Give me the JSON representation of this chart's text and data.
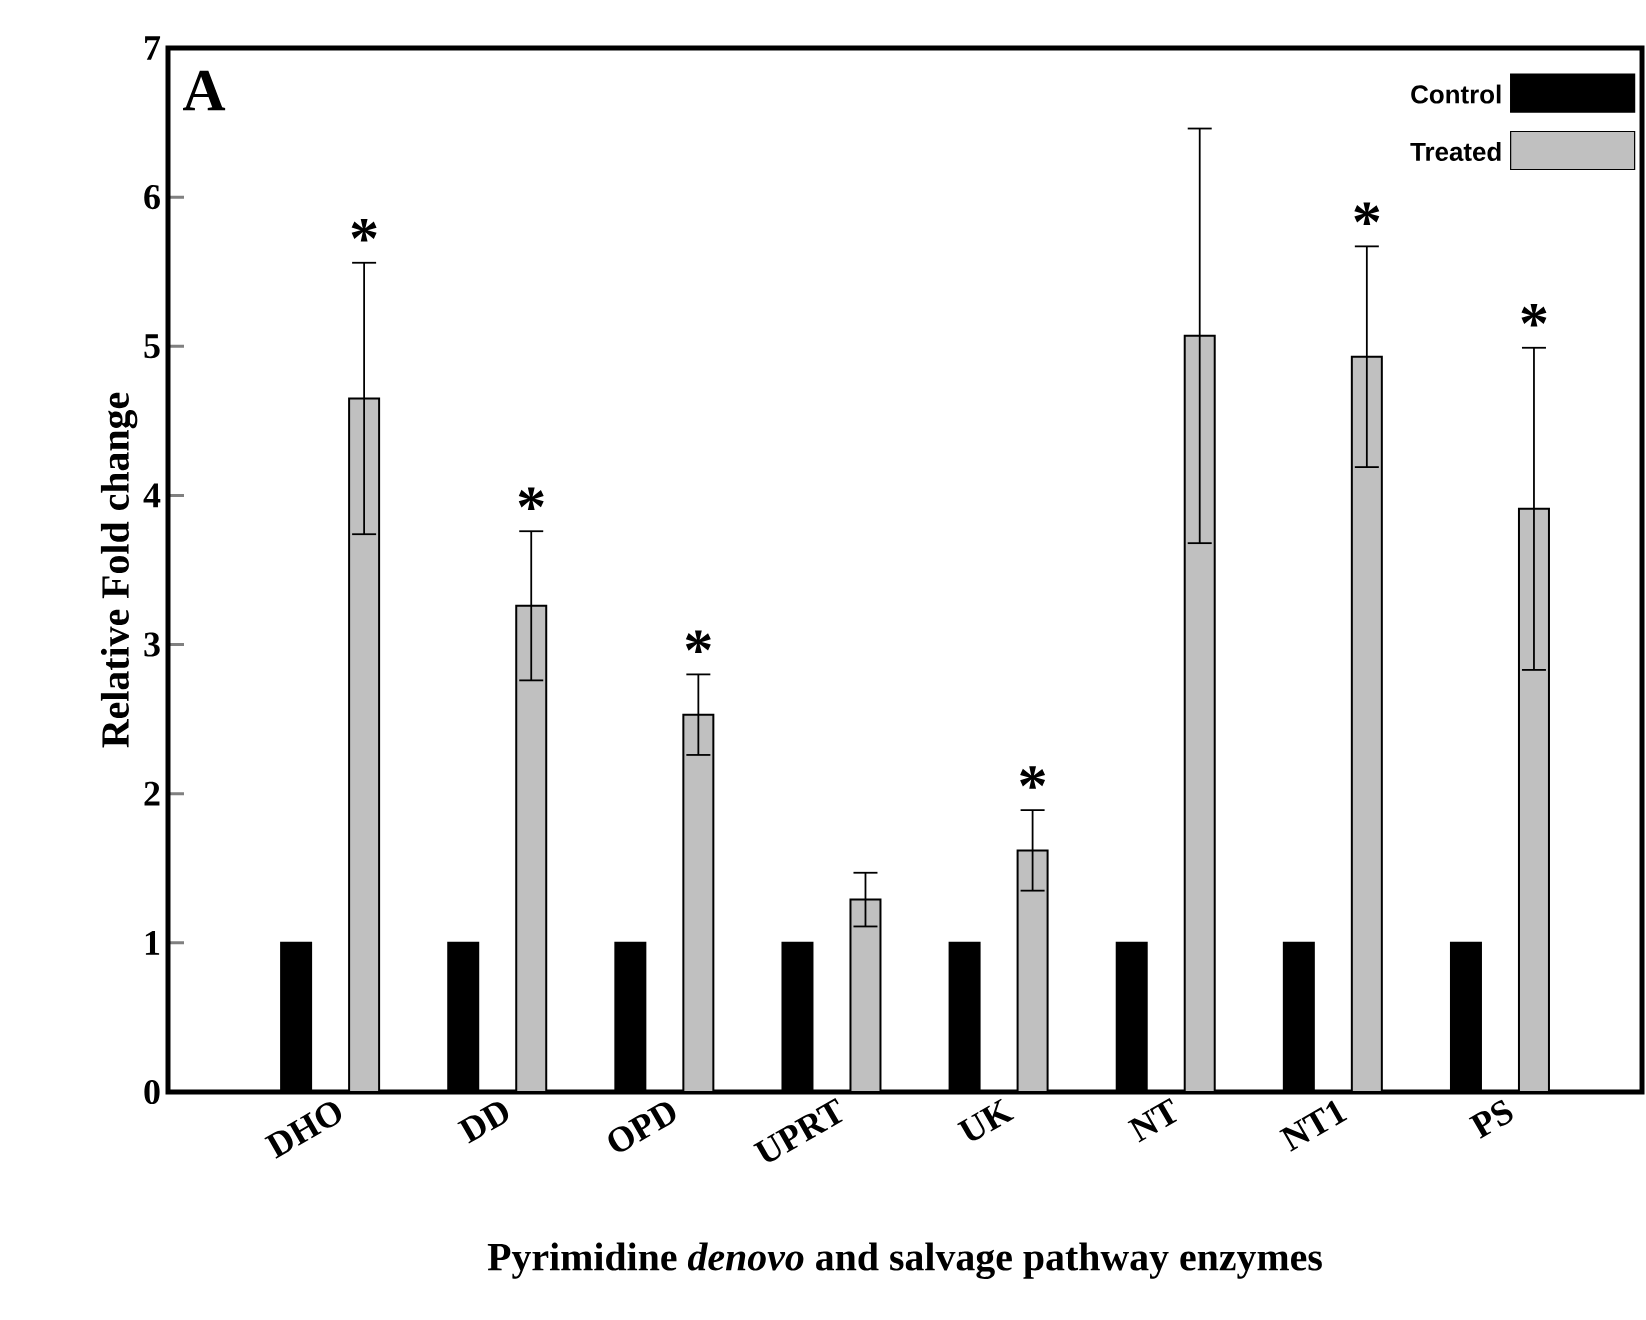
{
  "chart_data": {
    "type": "bar",
    "xlabel": "Pyrimidine *denovo* and salvage pathway enzymes",
    "ylabel": "Relative Fold change",
    "categories": [
      "DHO",
      "DD",
      "OPD",
      "UPRT",
      "UK",
      "NT",
      "NT1",
      "PS"
    ],
    "series": [
      {
        "name": "Control",
        "color": "#000000",
        "values": [
          1,
          1,
          1,
          1,
          1,
          1,
          1,
          1
        ]
      },
      {
        "name": "Treated",
        "color": "#c0c0c0",
        "values": [
          4.65,
          3.26,
          2.53,
          1.29,
          1.62,
          5.07,
          4.93,
          3.91
        ],
        "errors": [
          0.91,
          0.5,
          0.27,
          0.18,
          0.27,
          1.39,
          0.74,
          1.08
        ],
        "value_labels": [
          "*",
          "*",
          "*",
          null,
          "*",
          null,
          "*",
          "*"
        ]
      }
    ],
    "ylim": [
      0,
      7
    ],
    "yticks": [
      0,
      1,
      2,
      3,
      4,
      5,
      6,
      7
    ],
    "legend": "top right",
    "annotations": [
      "A"
    ]
  }
}
